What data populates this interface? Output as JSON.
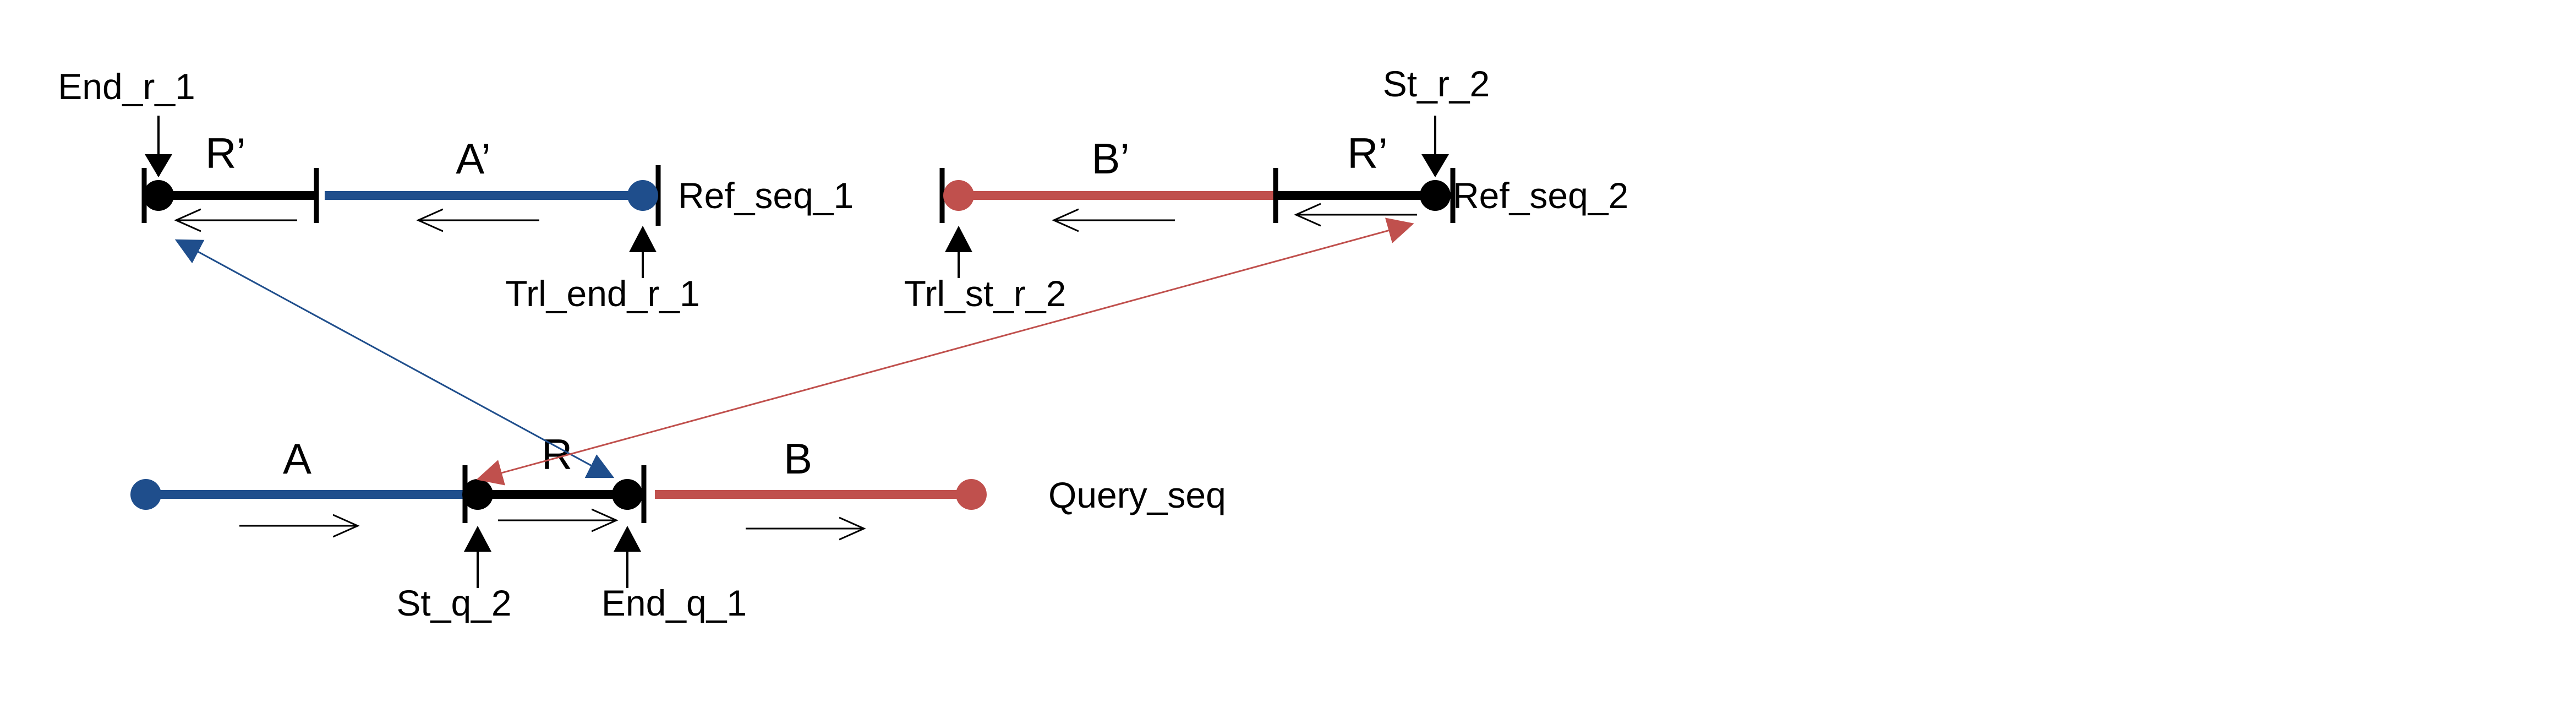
{
  "colors": {
    "blue": "#1f4e8c",
    "red": "#c0504d",
    "black": "#000000"
  },
  "ref_seq_1": {
    "name": "Ref_seq_1",
    "segment_r_prime": "R’",
    "segment_a_prime": "A’",
    "end_pointer": "End_r_1",
    "trl_end_pointer": "Trl_end_r_1"
  },
  "ref_seq_2": {
    "name": "Ref_seq_2",
    "segment_b_prime": "B’",
    "segment_r_prime": "R’",
    "start_pointer": "St_r_2",
    "trl_start_pointer": "Trl_st_r_2"
  },
  "query_seq": {
    "name": "Query_seq",
    "segment_a": "A",
    "segment_r": "R",
    "segment_b": "B",
    "start_pointer": "St_q_2",
    "end_pointer": "End_q_1"
  }
}
